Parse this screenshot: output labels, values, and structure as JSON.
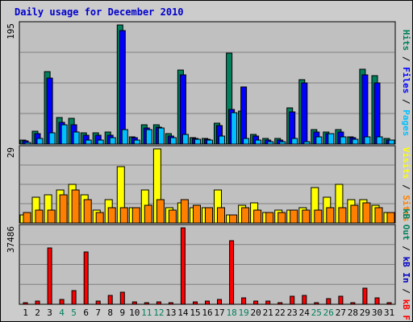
{
  "title": "Daily usage for December 2010",
  "colors": {
    "frame_bg": "#cccccc",
    "panel_bg": "#c0c0c0",
    "grid": "#808080",
    "title": "#0000cc",
    "weekday": "#000000",
    "weekend": "#00805c",
    "hits": "#00805c",
    "files": "#0000ff",
    "pages": "#00c0ff",
    "visits": "#ffff00",
    "sites": "#ff8000",
    "kbf": "#ff0000",
    "kbin": "#0000c0",
    "kbout": "#00805c"
  },
  "chart_data": [
    {
      "type": "bar",
      "panel": "top",
      "ymax_label": "195",
      "ylim": [
        0,
        195
      ],
      "grid": true,
      "legend": [
        {
          "key": "pages",
          "label": "Pages"
        },
        {
          "key": "sep",
          "label": " / "
        },
        {
          "key": "files",
          "label": "Files"
        },
        {
          "key": "sep",
          "label": " / "
        },
        {
          "key": "hits",
          "label": "Hits"
        }
      ],
      "categories": [
        "1",
        "2",
        "3",
        "4",
        "5",
        "6",
        "7",
        "8",
        "9",
        "10",
        "11",
        "12",
        "13",
        "14",
        "15",
        "16",
        "17",
        "18",
        "19",
        "20",
        "21",
        "22",
        "23",
        "24",
        "25",
        "26",
        "27",
        "28",
        "29",
        "30",
        "31"
      ],
      "series": [
        {
          "name": "Hits",
          "key": "hits",
          "values": [
            6,
            21,
            119,
            44,
            42,
            18,
            19,
            20,
            195,
            12,
            32,
            32,
            17,
            121,
            11,
            9,
            34,
            149,
            54,
            16,
            9,
            9,
            59,
            106,
            24,
            20,
            24,
            12,
            122,
            112,
            9
          ]
        },
        {
          "name": "Files",
          "key": "files",
          "values": [
            5,
            17,
            108,
            35,
            32,
            14,
            14,
            14,
            186,
            10,
            27,
            28,
            13,
            113,
            9,
            8,
            30,
            57,
            94,
            13,
            7,
            7,
            53,
            100,
            20,
            17,
            20,
            10,
            113,
            100,
            7
          ]
        },
        {
          "name": "Pages",
          "key": "pages",
          "values": [
            3,
            9,
            18,
            31,
            20,
            7,
            7,
            10,
            24,
            7,
            24,
            27,
            11,
            16,
            8,
            6,
            13,
            52,
            9,
            7,
            4,
            4,
            9,
            4,
            12,
            17,
            12,
            8,
            12,
            12,
            6
          ]
        }
      ]
    },
    {
      "type": "bar",
      "panel": "middle",
      "ymax_label": "29",
      "ylim": [
        0,
        29
      ],
      "grid": true,
      "legend": [
        {
          "key": "sites",
          "label": "Sites"
        },
        {
          "key": "sep",
          "label": " / "
        },
        {
          "key": "visits",
          "label": "Visits"
        }
      ],
      "categories": [
        "1",
        "2",
        "3",
        "4",
        "5",
        "6",
        "7",
        "8",
        "9",
        "10",
        "11",
        "12",
        "13",
        "14",
        "15",
        "16",
        "17",
        "18",
        "19",
        "20",
        "21",
        "22",
        "23",
        "24",
        "25",
        "26",
        "27",
        "28",
        "29",
        "30",
        "31"
      ],
      "series": [
        {
          "name": "Visits",
          "key": "visits",
          "values": [
            3,
            10,
            11,
            13,
            15,
            11,
            5,
            9,
            22,
            6,
            13,
            29,
            6,
            8,
            6,
            6,
            13,
            3,
            7,
            8,
            4,
            5,
            5,
            6,
            14,
            10,
            15,
            9,
            9,
            7,
            4
          ]
        },
        {
          "name": "Sites",
          "key": "sites",
          "values": [
            4,
            5,
            5,
            11,
            13,
            9,
            4,
            6,
            6,
            6,
            7,
            9,
            5,
            9,
            7,
            6,
            6,
            3,
            6,
            5,
            4,
            4,
            5,
            5,
            5,
            6,
            6,
            7,
            8,
            6,
            4
          ]
        }
      ]
    },
    {
      "type": "bar",
      "panel": "bottom",
      "ymax_label": "37486",
      "ylim": [
        0,
        37486
      ],
      "grid": true,
      "legend": [
        {
          "key": "kbf",
          "label": "kB F"
        },
        {
          "key": "sep",
          "label": " / "
        },
        {
          "key": "kbin",
          "label": "kB In"
        },
        {
          "key": "sep",
          "label": " / "
        },
        {
          "key": "kbout",
          "label": "kB Out"
        }
      ],
      "categories": [
        "1",
        "2",
        "3",
        "4",
        "5",
        "6",
        "7",
        "8",
        "9",
        "10",
        "11",
        "12",
        "13",
        "14",
        "15",
        "16",
        "17",
        "18",
        "19",
        "20",
        "21",
        "22",
        "23",
        "24",
        "25",
        "26",
        "27",
        "28",
        "29",
        "30",
        "31"
      ],
      "series": [
        {
          "name": "kB F",
          "key": "kbf",
          "values": [
            900,
            1400,
            27500,
            2200,
            6700,
            25500,
            1500,
            4300,
            5800,
            1300,
            800,
            1000,
            900,
            37486,
            1200,
            1500,
            2300,
            31000,
            3000,
            1600,
            1600,
            700,
            4100,
            4300,
            700,
            2900,
            3800,
            900,
            7700,
            3000,
            900
          ]
        }
      ]
    }
  ],
  "x_axis": {
    "labels": [
      "1",
      "2",
      "3",
      "4",
      "5",
      "6",
      "7",
      "8",
      "9",
      "10",
      "11",
      "12",
      "13",
      "14",
      "15",
      "16",
      "17",
      "18",
      "19",
      "20",
      "21",
      "22",
      "23",
      "24",
      "25",
      "26",
      "27",
      "28",
      "29",
      "30",
      "31"
    ],
    "weekend": [
      false,
      false,
      false,
      true,
      true,
      false,
      false,
      false,
      false,
      false,
      true,
      true,
      false,
      false,
      false,
      false,
      false,
      true,
      true,
      false,
      false,
      false,
      false,
      false,
      true,
      true,
      false,
      false,
      false,
      false,
      false
    ]
  }
}
